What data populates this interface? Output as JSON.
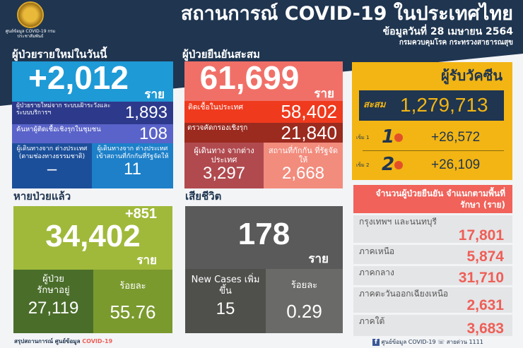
{
  "header": {
    "title": "สถานการณ์ COVID-19 ในประเทศไทย",
    "date": "ข้อมูลวันที่ 28 เมษายน 2564",
    "agency": "กรมควบคุมโรค กระทรวงสาธารณสุข",
    "logo_text": "ศูนย์ข้อมูล COVID-19 กรมประชาสัมพันธ์"
  },
  "unit": "ราย",
  "new_cases": {
    "heading": "ผู้ป่วยรายใหม่ในวันนี้",
    "total": "+2,012",
    "surveillance_label": "ผู้ป่วยรายใหม่จาก ระบบเฝ้าระวังและระบบบริการฯ",
    "surveillance": "1,893",
    "community_label": "ค้นหาผู้ติดเชื้อเชิงรุกในชุมชน",
    "community": "108",
    "natural_label": "ผู้เดินทางจาก ต่างประเทศ (ตามช่องทางธรรมชาติ)",
    "natural": "–",
    "quarantine_label": "ผู้เดินทางจาก ต่างประเทศ เข้าสถานที่กักกันที่รัฐจัดให้",
    "quarantine": "11"
  },
  "cumulative": {
    "heading": "ผู้ป่วยยืนยันสะสม",
    "total": "61,699",
    "domestic_label": "ติดเชื้อในประเทศ",
    "domestic": "58,402",
    "proactive_label": "ตรวจคัดกรองเชิงรุก",
    "proactive": "21,840",
    "travelers_label": "ผู้เดินทาง จากต่างประเทศ",
    "travelers": "3,297",
    "quarantine_label": "สถานที่กักกัน ที่รัฐจัดให้",
    "quarantine": "2,668",
    "colors": {
      "top": "#f07068",
      "domestic": "#ef3a1e",
      "proactive": "#9b2a1f"
    }
  },
  "vaccine": {
    "heading": "ผู้รับวัคซีน",
    "total_label": "สะสม",
    "total": "1,279,713",
    "dose1_label": "เข็ม 1",
    "dose1": "+26,572",
    "dose2_label": "เข็ม 2",
    "dose2": "+26,109",
    "icon": "syringe-virus-icon",
    "color": "#f2b514"
  },
  "recovered": {
    "heading": "หายป่วยแล้ว",
    "increase": "+851",
    "total": "34,402",
    "treating_label": "ผู้ป่วย รักษาอยู่",
    "treating": "27,119",
    "percent_label": "ร้อยละ",
    "percent": "55.76"
  },
  "deaths": {
    "heading": "เสียชีวิต",
    "total": "178",
    "new_label": "New Cases เพิ่มขึ้น",
    "new": "15",
    "percent_label": "ร้อยละ",
    "percent": "0.29"
  },
  "regions": {
    "heading": "จำนวนผู้ป่วยยืนยัน จำแนกตามพื้นที่รักษา (ราย)",
    "items": [
      {
        "label": "กรุงเทพฯ และนนทบุรี",
        "value": "17,801"
      },
      {
        "label": "ภาคเหนือ",
        "value": "5,874"
      },
      {
        "label": "ภาคกลาง",
        "value": "31,710"
      },
      {
        "label": "ภาคตะวันออกเฉียงเหนือ",
        "value": "2,631"
      },
      {
        "label": "ภาคใต้",
        "value": "3,683"
      }
    ]
  },
  "footer": {
    "left": "สรุปสถานการณ์ ศูนย์ข้อมูล",
    "left_accent": "COVID-19",
    "facebook": "ศูนย์ข้อมูล COVID-19",
    "hotline": "สายด่วน 1111"
  }
}
